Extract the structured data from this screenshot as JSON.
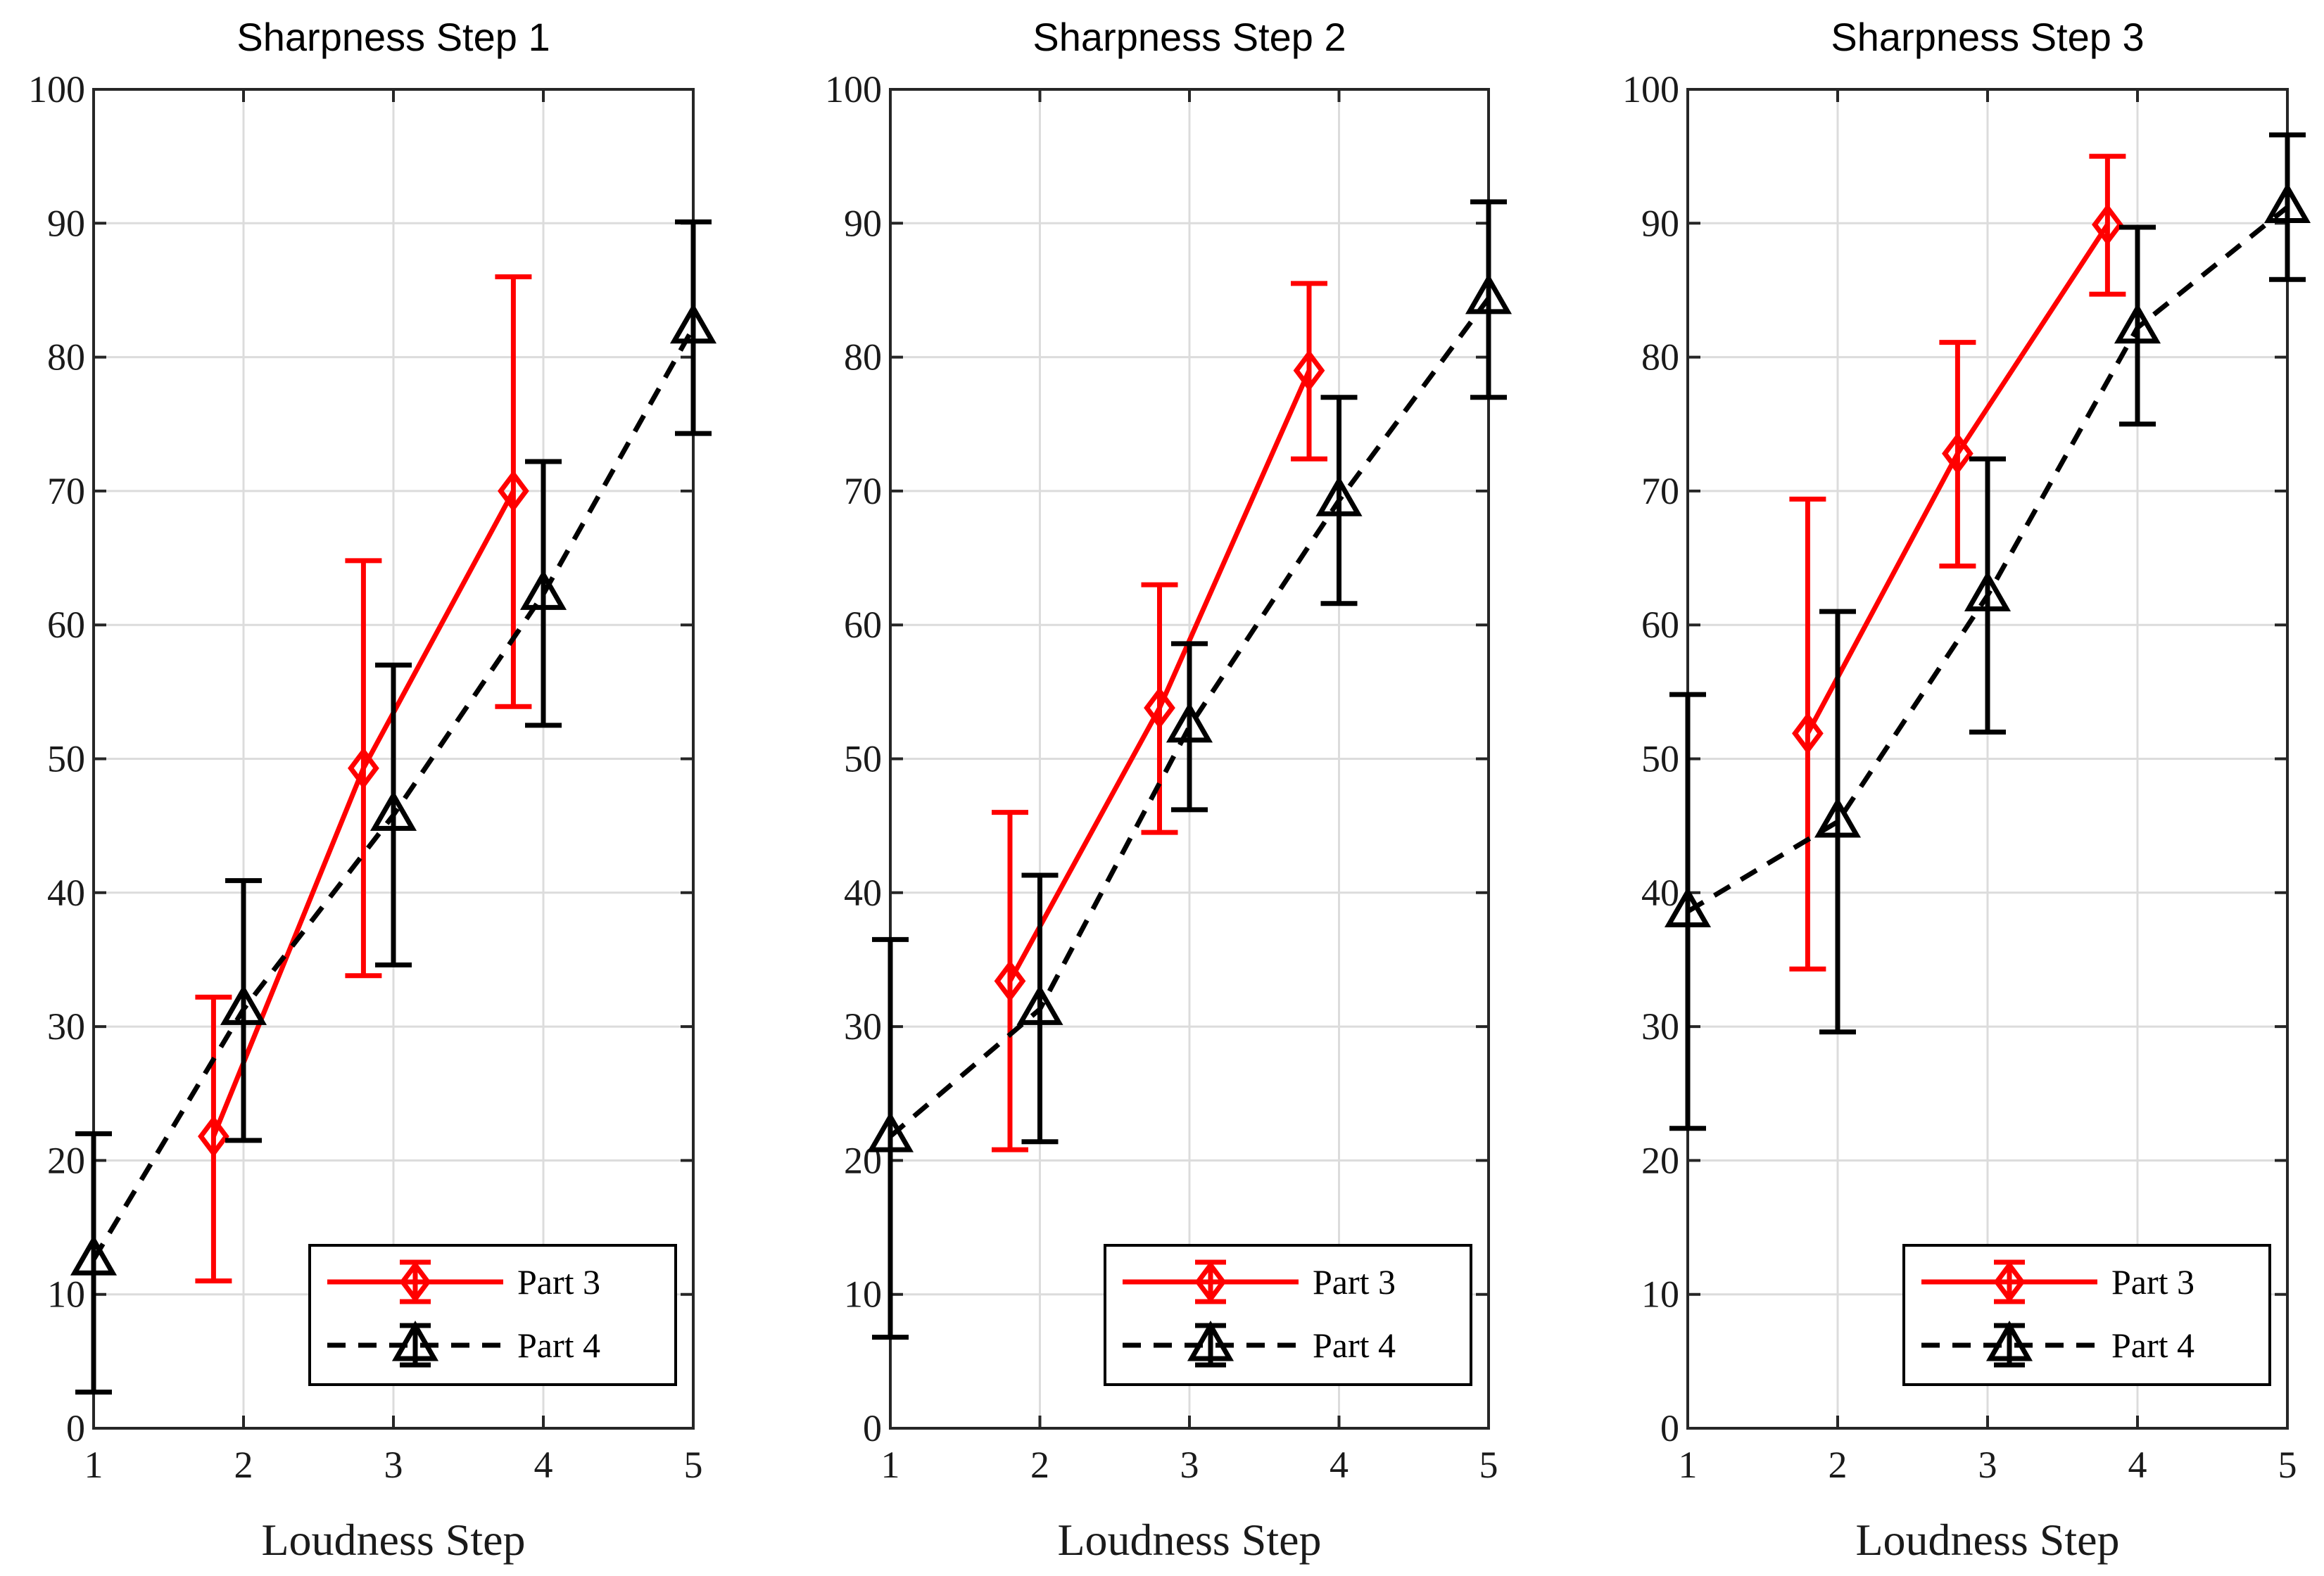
{
  "chart_data": [
    {
      "type": "line",
      "title": "Sharpness Step 1",
      "xlabel": "Loudness Step",
      "ylabel": "",
      "xlim": [
        1,
        5
      ],
      "ylim": [
        0,
        100
      ],
      "xticks": [
        "1",
        "2",
        "3",
        "4",
        "5"
      ],
      "yticks": [
        "0",
        "10",
        "20",
        "30",
        "40",
        "50",
        "60",
        "70",
        "80",
        "90",
        "100"
      ],
      "grid": true,
      "legend_position": "bottom-right",
      "series": [
        {
          "name": "Part 3",
          "color": "#ff0000",
          "marker": "diamond",
          "line": "solid",
          "x": [
            1.8,
            2.8,
            3.8
          ],
          "y": [
            21.8,
            49.3,
            70.0
          ],
          "err_low": [
            11.0,
            33.8,
            53.9
          ],
          "err_high": [
            32.2,
            64.8,
            86.0
          ]
        },
        {
          "name": "Part 4",
          "color": "#000000",
          "marker": "triangle",
          "line": "dashed",
          "x": [
            1,
            2,
            3,
            4,
            5
          ],
          "y": [
            12.6,
            31.3,
            45.8,
            62.3,
            82.2
          ],
          "err_low": [
            2.7,
            21.5,
            34.6,
            52.5,
            74.3
          ],
          "err_high": [
            22.0,
            40.9,
            57.0,
            72.2,
            90.1
          ]
        }
      ]
    },
    {
      "type": "line",
      "title": "Sharpness Step 2",
      "xlabel": "Loudness Step",
      "ylabel": "",
      "xlim": [
        1,
        5
      ],
      "ylim": [
        0,
        100
      ],
      "xticks": [
        "1",
        "2",
        "3",
        "4",
        "5"
      ],
      "yticks": [
        "0",
        "10",
        "20",
        "30",
        "40",
        "50",
        "60",
        "70",
        "80",
        "90",
        "100"
      ],
      "grid": true,
      "legend_position": "bottom-right",
      "series": [
        {
          "name": "Part 3",
          "color": "#ff0000",
          "marker": "diamond",
          "line": "solid",
          "x": [
            1.8,
            2.8,
            3.8
          ],
          "y": [
            33.4,
            53.8,
            79.0
          ],
          "err_low": [
            20.8,
            44.5,
            72.4
          ],
          "err_high": [
            46.0,
            63.0,
            85.5
          ]
        },
        {
          "name": "Part 4",
          "color": "#000000",
          "marker": "triangle",
          "line": "dashed",
          "x": [
            1,
            2,
            3,
            4,
            5
          ],
          "y": [
            21.8,
            31.3,
            52.4,
            69.3,
            84.4
          ],
          "err_low": [
            6.8,
            21.4,
            46.2,
            61.6,
            77.0
          ],
          "err_high": [
            36.5,
            41.3,
            58.6,
            77.0,
            91.6
          ]
        }
      ]
    },
    {
      "type": "line",
      "title": "Sharpness Step 3",
      "xlabel": "Loudness Step",
      "ylabel": "",
      "xlim": [
        1,
        5
      ],
      "ylim": [
        0,
        100
      ],
      "xticks": [
        "1",
        "2",
        "3",
        "4",
        "5"
      ],
      "yticks": [
        "0",
        "10",
        "20",
        "30",
        "40",
        "50",
        "60",
        "70",
        "80",
        "90",
        "100"
      ],
      "grid": true,
      "legend_position": "bottom-right",
      "series": [
        {
          "name": "Part 3",
          "color": "#ff0000",
          "marker": "diamond",
          "line": "solid",
          "x": [
            1.8,
            2.8,
            3.8
          ],
          "y": [
            51.9,
            72.8,
            89.9
          ],
          "err_low": [
            34.3,
            64.4,
            84.7
          ],
          "err_high": [
            69.4,
            81.1,
            95.0
          ]
        },
        {
          "name": "Part 4",
          "color": "#000000",
          "marker": "triangle",
          "line": "dashed",
          "x": [
            1,
            2,
            3,
            4,
            5
          ],
          "y": [
            38.6,
            45.3,
            62.2,
            82.2,
            91.2
          ],
          "err_low": [
            22.4,
            29.6,
            52.0,
            75.0,
            85.8
          ],
          "err_high": [
            54.8,
            61.0,
            72.4,
            89.7,
            96.6
          ]
        }
      ]
    }
  ]
}
